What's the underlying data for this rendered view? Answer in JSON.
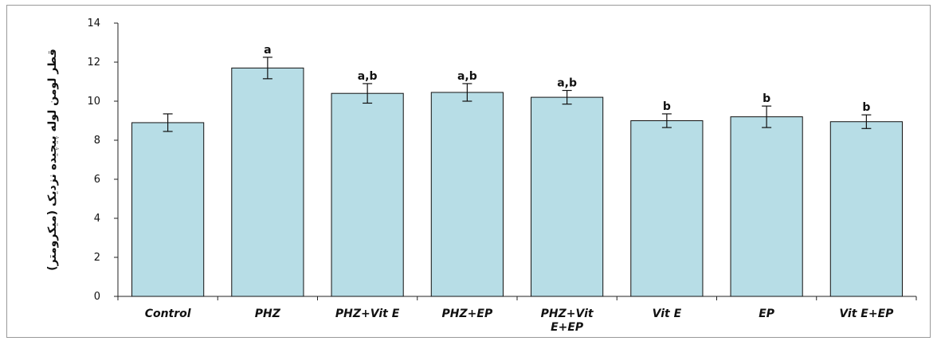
{
  "chart_data": {
    "type": "bar",
    "ylabel": "قطر لومن لوله پیچیده نزدیک (میکرومتر)",
    "ylim": [
      0,
      14
    ],
    "yticks": [
      0,
      2,
      4,
      6,
      8,
      10,
      12,
      14
    ],
    "ytick_labels": [
      "0",
      "2",
      "4",
      "6",
      "8",
      "10",
      "12",
      "14"
    ],
    "grid": false,
    "bar_color": "#b7dde6",
    "categories": [
      [
        "Control"
      ],
      [
        "PHZ"
      ],
      [
        "PHZ+Vit E"
      ],
      [
        "PHZ+EP"
      ],
      [
        "PHZ+Vit",
        "E+EP"
      ],
      [
        "Vit E"
      ],
      [
        "EP"
      ],
      [
        "Vit E+EP"
      ]
    ],
    "values": [
      8.9,
      11.7,
      10.4,
      10.45,
      10.2,
      9.0,
      9.2,
      8.95
    ],
    "errors": [
      0.45,
      0.55,
      0.5,
      0.45,
      0.35,
      0.35,
      0.55,
      0.35
    ],
    "annotations": [
      "",
      "a",
      "a,b",
      "a,b",
      "a,b",
      "b",
      "b",
      "b"
    ]
  }
}
